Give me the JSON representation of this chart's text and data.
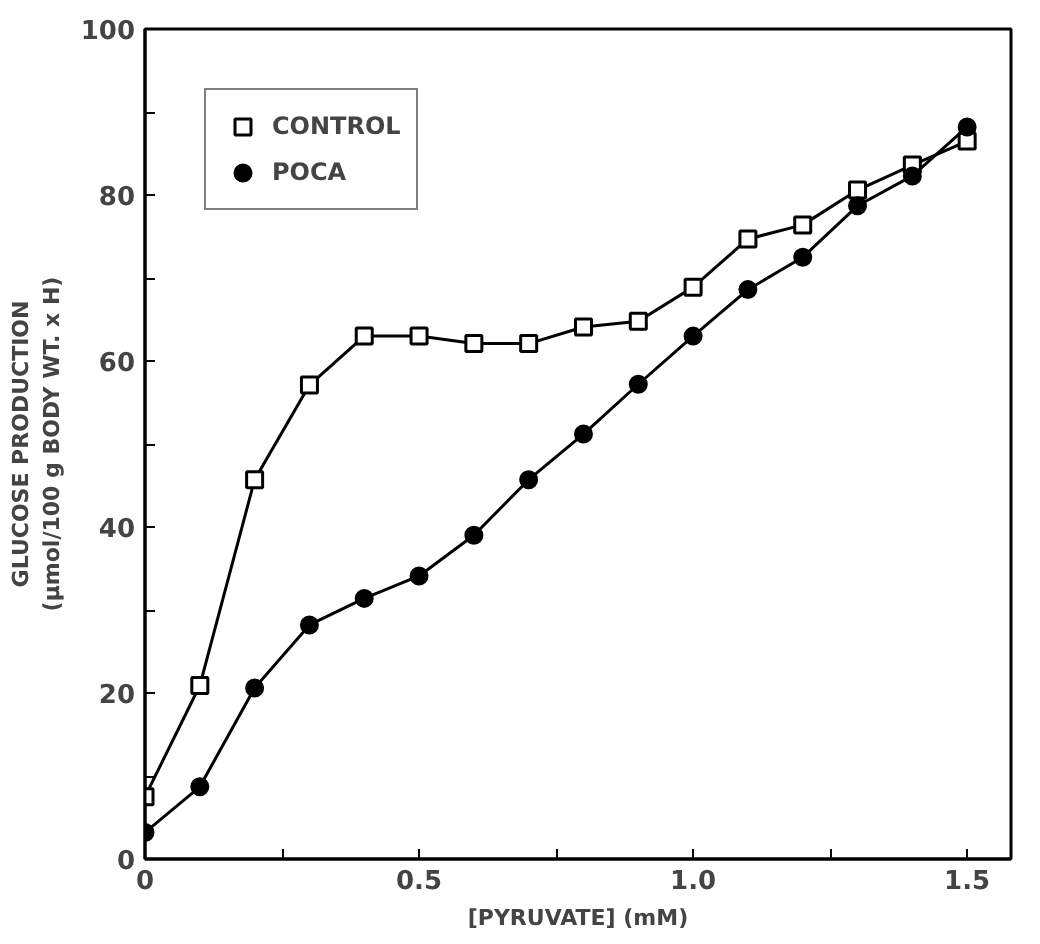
{
  "chart_data": {
    "type": "line",
    "xlabel": "[PYRUVATE] (mM)",
    "ylabel": "GLUCOSE PRODUCTION\n(µmol/100 g BODY WT. x H)",
    "x": [
      0,
      0.1,
      0.2,
      0.3,
      0.4,
      0.5,
      0.6,
      0.7,
      0.8,
      0.9,
      1.0,
      1.1,
      1.2,
      1.3,
      1.4,
      1.5
    ],
    "series": [
      {
        "name": "CONTROL",
        "color": "#000000",
        "marker": "square",
        "values": [
          7.5,
          20.9,
          45.7,
          57.1,
          63.0,
          63.0,
          62.1,
          62.1,
          64.1,
          64.8,
          68.9,
          74.7,
          76.4,
          80.6,
          83.6,
          86.5
        ]
      },
      {
        "name": "POCA",
        "color": "#000000",
        "marker": "circle",
        "values": [
          3.2,
          8.7,
          20.6,
          28.2,
          31.4,
          34.1,
          39.0,
          45.7,
          51.2,
          57.2,
          63.0,
          68.6,
          72.5,
          78.7,
          82.3,
          88.2
        ]
      }
    ],
    "xlim": [
      0,
      1.58
    ],
    "ylim": [
      0,
      100
    ],
    "xticks": [
      0,
      {
        "value": 0.25,
        "label": null
      },
      0.5,
      {
        "value": 0.75,
        "label": null
      },
      {
        "value": 1.0,
        "label": "1.0"
      },
      {
        "value": 1.25,
        "label": null
      },
      1.5
    ],
    "yticks": [
      0,
      {
        "value": 10,
        "label": null
      },
      20,
      {
        "value": 30,
        "label": null
      },
      40,
      {
        "value": 50,
        "label": null
      },
      60,
      {
        "value": 70,
        "label": null
      },
      80,
      {
        "value": 90,
        "label": null
      },
      100
    ],
    "grid": false,
    "legend": "top left",
    "line_style": "solid"
  }
}
